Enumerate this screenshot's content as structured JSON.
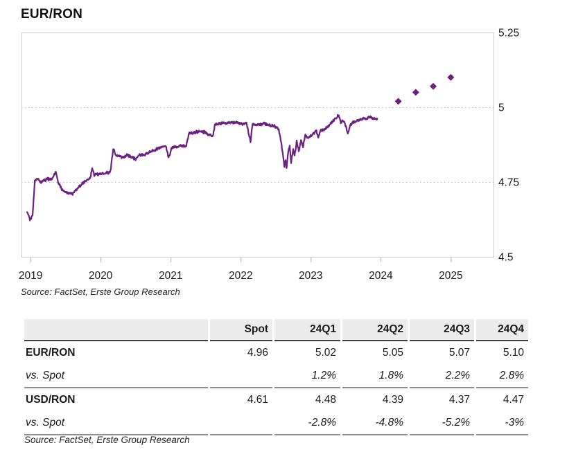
{
  "page": {
    "title": "EUR/RON"
  },
  "chart": {
    "source": "Source: FactSet, Erste Group Research",
    "line_color": "#6A2180",
    "border_color": "#c9c9c9",
    "grid_color": "#b8b8b8",
    "tick_color": "#adadad",
    "y_axis_labels": [
      "5.25",
      "5",
      "4.75",
      "4.5"
    ],
    "x_axis_labels": [
      "2019",
      "2020",
      "2021",
      "2022",
      "2023",
      "2024",
      "2025"
    ]
  },
  "chart_data": {
    "type": "line",
    "title": "EUR/RON",
    "xlabel": "",
    "ylabel": "",
    "xlim": [
      2018.87,
      2025.61
    ],
    "ylim": [
      4.5,
      5.25
    ],
    "x_ticks": [
      2019,
      2020,
      2021,
      2022,
      2023,
      2024,
      2025
    ],
    "y_ticks": [
      5.25,
      5,
      4.75,
      4.5
    ],
    "y_tick_labels": [
      "5.25",
      "5",
      "4.75",
      "4.5"
    ],
    "gridlines_y": [
      5,
      4.75
    ],
    "grid_style": "dotted horizontal",
    "legend": "none",
    "series": [
      {
        "name": "EUR/RON historical",
        "type": "line",
        "color": "#6A2180",
        "points": [
          [
            2018.95,
            4.65
          ],
          [
            2018.99,
            4.622
          ],
          [
            2019.03,
            4.642
          ],
          [
            2019.06,
            4.756
          ],
          [
            2019.1,
            4.762
          ],
          [
            2019.15,
            4.75
          ],
          [
            2019.2,
            4.756
          ],
          [
            2019.25,
            4.76
          ],
          [
            2019.3,
            4.758
          ],
          [
            2019.36,
            4.786
          ],
          [
            2019.4,
            4.744
          ],
          [
            2019.45,
            4.725
          ],
          [
            2019.5,
            4.718
          ],
          [
            2019.55,
            4.714
          ],
          [
            2019.6,
            4.712
          ],
          [
            2019.65,
            4.722
          ],
          [
            2019.7,
            4.736
          ],
          [
            2019.75,
            4.748
          ],
          [
            2019.8,
            4.756
          ],
          [
            2019.85,
            4.762
          ],
          [
            2019.88,
            4.8
          ],
          [
            2019.91,
            4.772
          ],
          [
            2019.95,
            4.776
          ],
          [
            2020.0,
            4.778
          ],
          [
            2020.08,
            4.78
          ],
          [
            2020.14,
            4.784
          ],
          [
            2020.18,
            4.864
          ],
          [
            2020.22,
            4.838
          ],
          [
            2020.3,
            4.832
          ],
          [
            2020.38,
            4.84
          ],
          [
            2020.46,
            4.832
          ],
          [
            2020.5,
            4.826
          ],
          [
            2020.56,
            4.842
          ],
          [
            2020.62,
            4.84
          ],
          [
            2020.7,
            4.85
          ],
          [
            2020.78,
            4.858
          ],
          [
            2020.86,
            4.866
          ],
          [
            2020.93,
            4.87
          ],
          [
            2020.97,
            4.832
          ],
          [
            2021.02,
            4.866
          ],
          [
            2021.1,
            4.87
          ],
          [
            2021.18,
            4.872
          ],
          [
            2021.22,
            4.87
          ],
          [
            2021.26,
            4.912
          ],
          [
            2021.34,
            4.916
          ],
          [
            2021.42,
            4.92
          ],
          [
            2021.5,
            4.916
          ],
          [
            2021.55,
            4.908
          ],
          [
            2021.6,
            4.902
          ],
          [
            2021.63,
            4.94
          ],
          [
            2021.7,
            4.946
          ],
          [
            2021.78,
            4.946
          ],
          [
            2021.86,
            4.95
          ],
          [
            2021.94,
            4.95
          ],
          [
            2022.02,
            4.945
          ],
          [
            2022.08,
            4.948
          ],
          [
            2022.14,
            4.886
          ],
          [
            2022.17,
            4.945
          ],
          [
            2022.25,
            4.942
          ],
          [
            2022.33,
            4.946
          ],
          [
            2022.41,
            4.94
          ],
          [
            2022.48,
            4.938
          ],
          [
            2022.54,
            4.928
          ],
          [
            2022.57,
            4.895
          ],
          [
            2022.6,
            4.845
          ],
          [
            2022.625,
            4.8
          ],
          [
            2022.64,
            4.825
          ],
          [
            2022.655,
            4.797
          ],
          [
            2022.68,
            4.855
          ],
          [
            2022.7,
            4.87
          ],
          [
            2022.72,
            4.815
          ],
          [
            2022.75,
            4.86
          ],
          [
            2022.77,
            4.838
          ],
          [
            2022.8,
            4.885
          ],
          [
            2022.83,
            4.855
          ],
          [
            2022.86,
            4.89
          ],
          [
            2022.89,
            4.868
          ],
          [
            2022.92,
            4.908
          ],
          [
            2022.96,
            4.895
          ],
          [
            2023.0,
            4.906
          ],
          [
            2023.04,
            4.912
          ],
          [
            2023.08,
            4.92
          ],
          [
            2023.11,
            4.898
          ],
          [
            2023.14,
            4.922
          ],
          [
            2023.18,
            4.925
          ],
          [
            2023.22,
            4.93
          ],
          [
            2023.27,
            4.942
          ],
          [
            2023.32,
            4.955
          ],
          [
            2023.36,
            4.963
          ],
          [
            2023.4,
            4.975
          ],
          [
            2023.43,
            4.945
          ],
          [
            2023.46,
            4.958
          ],
          [
            2023.5,
            4.938
          ],
          [
            2023.53,
            4.91
          ],
          [
            2023.56,
            4.938
          ],
          [
            2023.6,
            4.948
          ],
          [
            2023.64,
            4.952
          ],
          [
            2023.68,
            4.958
          ],
          [
            2023.72,
            4.96
          ],
          [
            2023.76,
            4.963
          ],
          [
            2023.8,
            4.963
          ],
          [
            2023.84,
            4.968
          ],
          [
            2023.88,
            4.963
          ],
          [
            2023.92,
            4.96
          ],
          [
            2023.95,
            4.96
          ]
        ]
      },
      {
        "name": "EUR/RON forecast",
        "type": "scatter",
        "marker": "diamond",
        "color": "#6A2180",
        "points": [
          [
            2024.25,
            5.02
          ],
          [
            2024.5,
            5.05
          ],
          [
            2024.75,
            5.07
          ],
          [
            2025.0,
            5.1
          ]
        ]
      }
    ]
  },
  "table": {
    "header_bg": "#ECECEC",
    "columns": [
      "",
      "Spot",
      "24Q1",
      "24Q2",
      "24Q3",
      "24Q4"
    ],
    "rows": [
      {
        "label": "EUR/RON",
        "values": [
          "4.96",
          "5.02",
          "5.05",
          "5.07",
          "5.10"
        ]
      },
      {
        "label": "vs. Spot",
        "values": [
          "",
          "1.2%",
          "1.8%",
          "2.2%",
          "2.8%"
        ]
      },
      {
        "label": "USD/RON",
        "values": [
          "4.61",
          "4.48",
          "4.39",
          "4.37",
          "4.47"
        ]
      },
      {
        "label": "vs. Spot",
        "values": [
          "",
          "-2.8%",
          "-4.8%",
          "-5.2%",
          "-3%"
        ]
      }
    ],
    "source": "Source: FactSet, Erste Group Research"
  }
}
